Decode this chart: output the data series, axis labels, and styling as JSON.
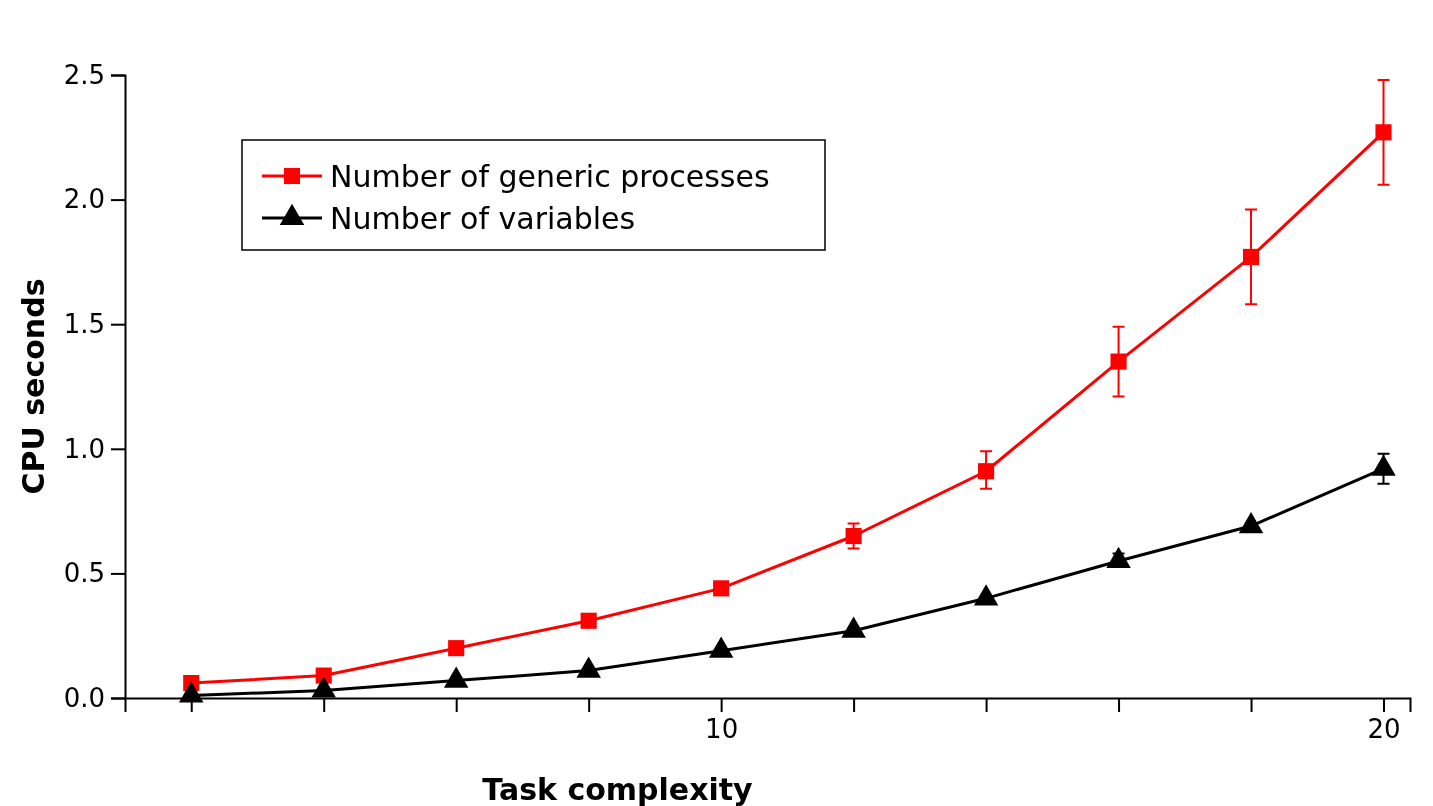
{
  "chart_data": {
    "type": "line",
    "xlabel": "Task complexity",
    "ylabel": "CPU seconds",
    "x": [
      2,
      4,
      6,
      8,
      10,
      12,
      14,
      16,
      18,
      20
    ],
    "series": [
      {
        "name": "Number of generic processes",
        "color": "#ff0000",
        "marker": "square",
        "values": [
          0.06,
          0.09,
          0.2,
          0.31,
          0.44,
          0.65,
          0.91,
          1.35,
          1.77,
          2.27
        ],
        "errors": [
          null,
          null,
          null,
          null,
          null,
          [
            0.6,
            0.7
          ],
          [
            0.84,
            0.99
          ],
          [
            1.21,
            1.49
          ],
          [
            1.58,
            1.96
          ],
          [
            2.06,
            2.48
          ]
        ]
      },
      {
        "name": "Number of variables",
        "color": "#000000",
        "marker": "triangle",
        "values": [
          0.01,
          0.03,
          0.07,
          0.11,
          0.19,
          0.27,
          0.4,
          0.55,
          0.69,
          0.92
        ],
        "errors": [
          null,
          null,
          null,
          null,
          null,
          null,
          null,
          [
            0.53,
            0.58
          ],
          null,
          [
            0.86,
            0.98
          ]
        ]
      }
    ],
    "xlim": [
      1,
      20.4
    ],
    "ylim": [
      0,
      2.5
    ],
    "xticks": [
      {
        "value": 2,
        "label": null
      },
      {
        "value": 4,
        "label": null
      },
      {
        "value": 6,
        "label": null
      },
      {
        "value": 8,
        "label": null
      },
      10,
      {
        "value": 12,
        "label": null
      },
      {
        "value": 14,
        "label": null
      },
      {
        "value": 16,
        "label": null
      },
      {
        "value": 18,
        "label": null
      },
      20
    ],
    "yticks": [
      {
        "value": 0,
        "label": "0.0"
      },
      {
        "value": 0.5,
        "label": "0.5"
      },
      {
        "value": 1,
        "label": "1.0"
      },
      {
        "value": 1.5,
        "label": "1.5"
      },
      {
        "value": 2,
        "label": "2.0"
      },
      {
        "value": 2.5,
        "label": "2.5"
      }
    ],
    "grid": false,
    "legend": "top left"
  }
}
